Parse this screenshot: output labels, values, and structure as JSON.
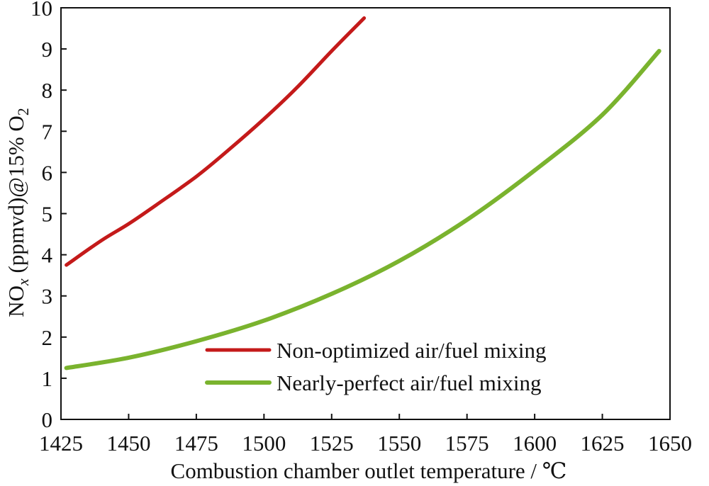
{
  "chart_data": {
    "type": "line",
    "title": "",
    "xlabel": "Combustion chamber outlet temperature / ℃",
    "ylabel_parts": {
      "main": "NO",
      "sub_x": "x",
      "mid": " (ppmvd)@15% O",
      "sub_2": "2"
    },
    "xlim": [
      1425,
      1650
    ],
    "ylim": [
      0,
      10
    ],
    "xticks": [
      1425,
      1450,
      1475,
      1500,
      1525,
      1550,
      1575,
      1600,
      1625,
      1650
    ],
    "yticks": [
      0,
      1,
      2,
      3,
      4,
      5,
      6,
      7,
      8,
      9,
      10
    ],
    "grid": false,
    "legend_position": "bottom-right",
    "series": [
      {
        "name": "Non-optimized air/fuel mixing",
        "color": "#c41a1a",
        "x": [
          1427,
          1440,
          1450,
          1460,
          1475,
          1487,
          1500,
          1512,
          1525,
          1537
        ],
        "y": [
          3.75,
          4.35,
          4.75,
          5.2,
          5.9,
          6.55,
          7.3,
          8.05,
          8.95,
          9.75
        ]
      },
      {
        "name": "Nearly-perfect air/fuel mixing",
        "color": "#7ab32e",
        "x": [
          1427,
          1450,
          1475,
          1500,
          1525,
          1550,
          1575,
          1600,
          1625,
          1646
        ],
        "y": [
          1.25,
          1.5,
          1.9,
          2.4,
          3.05,
          3.85,
          4.85,
          6.05,
          7.4,
          8.95
        ]
      }
    ]
  }
}
